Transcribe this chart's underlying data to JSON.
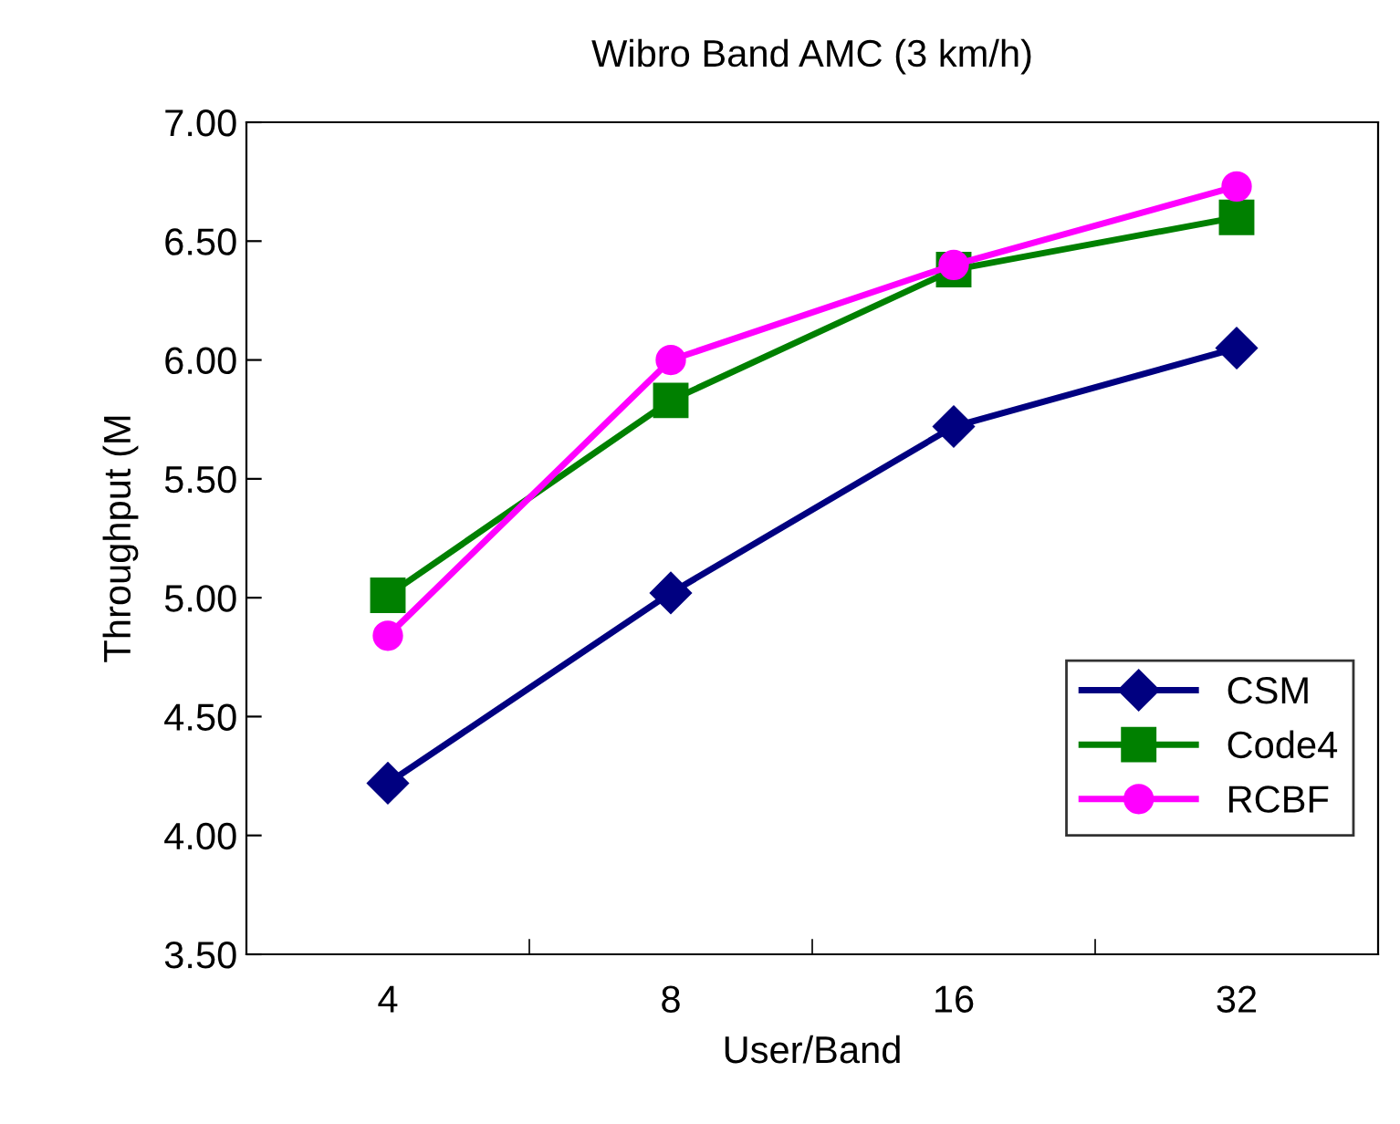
{
  "chart_data": {
    "type": "line",
    "title": "Wibro Band AMC (3 km/h)",
    "xlabel": "User/Band",
    "ylabel": "Throughput (M",
    "categories": [
      "4",
      "8",
      "16",
      "32"
    ],
    "series": [
      {
        "name": "CSM",
        "color": "#000080",
        "marker": "diamond",
        "values": [
          4.22,
          5.02,
          5.72,
          6.05
        ]
      },
      {
        "name": "Code4",
        "color": "#008000",
        "marker": "square",
        "values": [
          5.01,
          5.83,
          6.38,
          6.6
        ]
      },
      {
        "name": "RCBF",
        "color": "#ff00ff",
        "marker": "circle",
        "values": [
          4.84,
          6.0,
          6.4,
          6.73
        ]
      }
    ],
    "ylim": [
      3.5,
      7.0
    ],
    "yticks": [
      {
        "value": 3.5,
        "label": "3.50"
      },
      {
        "value": 4.0,
        "label": "4.00"
      },
      {
        "value": 4.5,
        "label": "4.50"
      },
      {
        "value": 5.0,
        "label": "5.00"
      },
      {
        "value": 5.5,
        "label": "5.50"
      },
      {
        "value": 6.0,
        "label": "6.00"
      },
      {
        "value": 6.5,
        "label": "6.50"
      },
      {
        "value": 7.0,
        "label": "7.00"
      }
    ],
    "grid": false,
    "legend": "bottom right",
    "line_style": "solid"
  }
}
